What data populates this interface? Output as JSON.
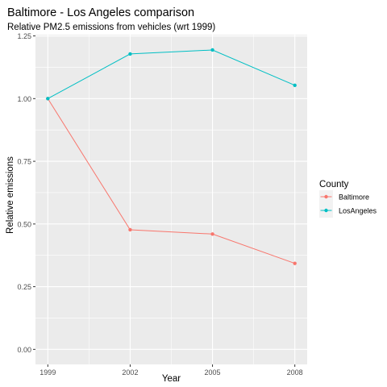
{
  "chart_data": {
    "type": "line",
    "title": "Baltimore - Los Angeles comparison",
    "subtitle": "Relative PM2.5 emissions from vehicles (wrt 1999)",
    "xlabel": "Year",
    "ylabel": "Relative emissions",
    "x": [
      1999,
      2002,
      2005,
      2008
    ],
    "x_ticks": [
      "1999",
      "2002",
      "2005",
      "2008"
    ],
    "xlim": [
      1998.55,
      2008.45
    ],
    "ylim": [
      -0.06,
      1.255
    ],
    "y_ticks": [
      0.0,
      0.25,
      0.5,
      0.75,
      1.0,
      1.25
    ],
    "y_tick_labels": [
      "0.00",
      "0.25",
      "0.50",
      "0.75",
      "1.00",
      "1.25"
    ],
    "grid": true,
    "legend": {
      "title": "County",
      "placement": "right"
    },
    "series": [
      {
        "name": "Baltimore",
        "color": "#F8766D",
        "values": [
          1.0,
          0.477,
          0.46,
          0.343
        ]
      },
      {
        "name": "LosAngeles",
        "color": "#00BFC4",
        "values": [
          1.0,
          1.178,
          1.194,
          1.053
        ]
      }
    ]
  }
}
